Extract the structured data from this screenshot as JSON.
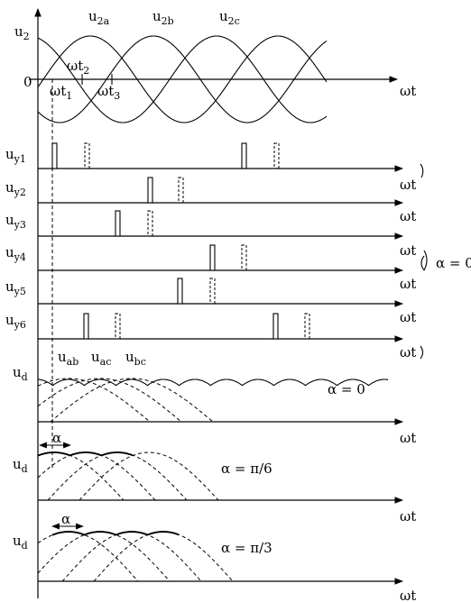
{
  "top": {
    "ylabel_main": "u",
    "ylabel_sub": "2",
    "origin": "0",
    "xlabel": "ωt",
    "phases": [
      {
        "main": "u",
        "sub": "2a"
      },
      {
        "main": "u",
        "sub": "2b"
      },
      {
        "main": "u",
        "sub": "2c"
      }
    ],
    "instants": [
      {
        "main": "ωt",
        "sub": "1"
      },
      {
        "main": "ωt",
        "sub": "2"
      },
      {
        "main": "ωt",
        "sub": "3"
      }
    ]
  },
  "pulses": [
    {
      "main": "u",
      "sub": "y1",
      "xlabel": "ωt"
    },
    {
      "main": "u",
      "sub": "y2",
      "xlabel": "ωt"
    },
    {
      "main": "u",
      "sub": "y3",
      "xlabel": "ωt"
    },
    {
      "main": "u",
      "sub": "y4",
      "xlabel": "ωt"
    },
    {
      "main": "u",
      "sub": "y5",
      "xlabel": "ωt"
    },
    {
      "main": "u",
      "sub": "y6",
      "xlabel": "ωt"
    }
  ],
  "pulse_group_label": "α = 0",
  "output": [
    {
      "ylabel_main": "u",
      "ylabel_sub": "d",
      "xlabel": "ωt",
      "alpha_label": "α = 0",
      "segments": [
        {
          "main": "u",
          "sub": "ab"
        },
        {
          "main": "u",
          "sub": "ac"
        },
        {
          "main": "u",
          "sub": "bc"
        }
      ]
    },
    {
      "ylabel_main": "u",
      "ylabel_sub": "d",
      "xlabel": "ωt",
      "alpha_label": "α = π/6",
      "alpha_marker": "α"
    },
    {
      "ylabel_main": "u",
      "ylabel_sub": "d",
      "xlabel": "ωt",
      "alpha_label": "α = π/3",
      "alpha_marker": "α"
    }
  ]
}
